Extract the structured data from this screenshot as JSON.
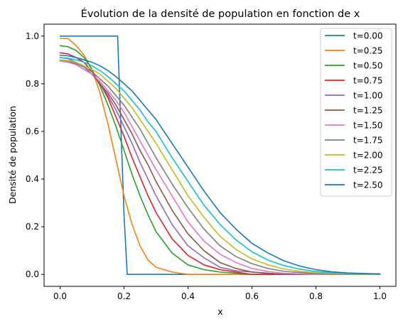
{
  "chart_data": {
    "type": "line",
    "title": "Évolution de la densité de population en fonction de x",
    "xlabel": "x",
    "ylabel": "Densité de population",
    "xlim": [
      -0.05,
      1.05
    ],
    "ylim": [
      -0.05,
      1.05
    ],
    "xticks": [
      0.0,
      0.2,
      0.4,
      0.6,
      0.8,
      1.0
    ],
    "xtick_labels": [
      "0.0",
      "0.2",
      "0.4",
      "0.6",
      "0.8",
      "1.0"
    ],
    "yticks": [
      0.0,
      0.2,
      0.4,
      0.6,
      0.8,
      1.0
    ],
    "ytick_labels": [
      "0.0",
      "0.2",
      "0.4",
      "0.6",
      "0.8",
      "1.0"
    ],
    "grid": false,
    "legend_position": "top-right",
    "series": [
      {
        "name": "t=0.00",
        "color": "#1f77b4",
        "x": [
          0,
          0.05,
          0.1,
          0.15,
          0.18,
          0.2,
          0.21,
          0.3,
          0.4,
          0.5,
          0.6,
          0.7,
          0.8,
          0.9,
          1.0
        ],
        "y": [
          1.0,
          1.0,
          1.0,
          1.0,
          1.0,
          0.25,
          0.0,
          0.0,
          0.0,
          0.0,
          0.0,
          0.0,
          0.0,
          0.0,
          0.0
        ]
      },
      {
        "name": "t=0.25",
        "color": "#ff7f0e",
        "x": [
          0,
          0.025,
          0.05,
          0.075,
          0.1,
          0.125,
          0.15,
          0.175,
          0.2,
          0.225,
          0.25,
          0.275,
          0.3,
          0.35,
          0.4,
          0.5,
          0.6,
          0.7,
          0.8,
          0.9,
          1.0
        ],
        "y": [
          0.99,
          0.99,
          0.96,
          0.92,
          0.86,
          0.76,
          0.63,
          0.48,
          0.33,
          0.21,
          0.12,
          0.06,
          0.03,
          0.01,
          0.0,
          0.0,
          0.0,
          0.0,
          0.0,
          0.0,
          0.0
        ]
      },
      {
        "name": "t=0.50",
        "color": "#2ca02c",
        "x": [
          0,
          0.025,
          0.05,
          0.075,
          0.1,
          0.125,
          0.15,
          0.175,
          0.2,
          0.225,
          0.25,
          0.275,
          0.3,
          0.35,
          0.4,
          0.45,
          0.5,
          0.6,
          0.7,
          0.8,
          0.9,
          1.0
        ],
        "y": [
          0.96,
          0.955,
          0.94,
          0.91,
          0.86,
          0.79,
          0.71,
          0.62,
          0.52,
          0.42,
          0.33,
          0.25,
          0.18,
          0.09,
          0.04,
          0.02,
          0.01,
          0.0,
          0.0,
          0.0,
          0.0,
          0.0
        ]
      },
      {
        "name": "t=0.75",
        "color": "#d62728",
        "x": [
          0,
          0.025,
          0.05,
          0.075,
          0.1,
          0.125,
          0.15,
          0.175,
          0.2,
          0.225,
          0.25,
          0.275,
          0.3,
          0.35,
          0.4,
          0.45,
          0.5,
          0.6,
          0.7,
          0.8,
          0.9,
          1.0
        ],
        "y": [
          0.93,
          0.925,
          0.91,
          0.89,
          0.85,
          0.8,
          0.74,
          0.66,
          0.58,
          0.49,
          0.41,
          0.33,
          0.26,
          0.15,
          0.08,
          0.04,
          0.02,
          0.0,
          0.0,
          0.0,
          0.0,
          0.0
        ]
      },
      {
        "name": "t=1.00",
        "color": "#9467bd",
        "x": [
          0,
          0.025,
          0.05,
          0.075,
          0.1,
          0.125,
          0.15,
          0.175,
          0.2,
          0.225,
          0.25,
          0.275,
          0.3,
          0.35,
          0.4,
          0.45,
          0.5,
          0.55,
          0.6,
          0.7,
          0.8,
          0.9,
          1.0
        ],
        "y": [
          0.91,
          0.905,
          0.89,
          0.87,
          0.84,
          0.8,
          0.75,
          0.69,
          0.62,
          0.55,
          0.47,
          0.4,
          0.33,
          0.21,
          0.12,
          0.07,
          0.03,
          0.015,
          0.01,
          0.0,
          0.0,
          0.0,
          0.0
        ]
      },
      {
        "name": "t=1.25",
        "color": "#8c564b",
        "x": [
          0,
          0.025,
          0.05,
          0.075,
          0.1,
          0.125,
          0.15,
          0.175,
          0.2,
          0.225,
          0.25,
          0.275,
          0.3,
          0.35,
          0.4,
          0.45,
          0.5,
          0.55,
          0.6,
          0.7,
          0.8,
          0.9,
          1.0
        ],
        "y": [
          0.9,
          0.895,
          0.88,
          0.86,
          0.84,
          0.8,
          0.76,
          0.71,
          0.65,
          0.59,
          0.52,
          0.46,
          0.39,
          0.27,
          0.17,
          0.1,
          0.05,
          0.025,
          0.01,
          0.0,
          0.0,
          0.0,
          0.0
        ]
      },
      {
        "name": "t=1.50",
        "color": "#e377c2",
        "x": [
          0,
          0.025,
          0.05,
          0.075,
          0.1,
          0.125,
          0.15,
          0.175,
          0.2,
          0.225,
          0.25,
          0.275,
          0.3,
          0.35,
          0.4,
          0.45,
          0.5,
          0.55,
          0.6,
          0.65,
          0.7,
          0.8,
          0.9,
          1.0
        ],
        "y": [
          0.895,
          0.89,
          0.88,
          0.86,
          0.84,
          0.81,
          0.77,
          0.73,
          0.68,
          0.62,
          0.56,
          0.5,
          0.44,
          0.33,
          0.22,
          0.14,
          0.085,
          0.05,
          0.025,
          0.012,
          0.005,
          0.0,
          0.0,
          0.0
        ]
      },
      {
        "name": "t=1.75",
        "color": "#7f7f7f",
        "x": [
          0,
          0.025,
          0.05,
          0.075,
          0.1,
          0.125,
          0.15,
          0.175,
          0.2,
          0.225,
          0.25,
          0.275,
          0.3,
          0.35,
          0.4,
          0.45,
          0.5,
          0.55,
          0.6,
          0.65,
          0.7,
          0.8,
          0.9,
          1.0
        ],
        "y": [
          0.9,
          0.895,
          0.885,
          0.87,
          0.85,
          0.82,
          0.79,
          0.75,
          0.71,
          0.66,
          0.61,
          0.55,
          0.49,
          0.38,
          0.28,
          0.19,
          0.12,
          0.075,
          0.045,
          0.025,
          0.013,
          0.003,
          0.0,
          0.0
        ]
      },
      {
        "name": "t=2.00",
        "color": "#bcbd22",
        "x": [
          0,
          0.025,
          0.05,
          0.075,
          0.1,
          0.125,
          0.15,
          0.175,
          0.2,
          0.225,
          0.25,
          0.275,
          0.3,
          0.35,
          0.4,
          0.45,
          0.5,
          0.55,
          0.6,
          0.65,
          0.7,
          0.75,
          0.8,
          0.9,
          1.0
        ],
        "y": [
          0.9,
          0.897,
          0.89,
          0.875,
          0.86,
          0.84,
          0.81,
          0.78,
          0.74,
          0.7,
          0.65,
          0.6,
          0.55,
          0.44,
          0.33,
          0.24,
          0.16,
          0.105,
          0.065,
          0.04,
          0.023,
          0.013,
          0.007,
          0.002,
          0.001
        ]
      },
      {
        "name": "t=2.25",
        "color": "#17becf",
        "x": [
          0,
          0.025,
          0.05,
          0.075,
          0.1,
          0.125,
          0.15,
          0.175,
          0.2,
          0.225,
          0.25,
          0.275,
          0.3,
          0.35,
          0.4,
          0.45,
          0.5,
          0.55,
          0.6,
          0.65,
          0.7,
          0.75,
          0.8,
          0.9,
          1.0
        ],
        "y": [
          0.91,
          0.907,
          0.9,
          0.89,
          0.875,
          0.855,
          0.83,
          0.8,
          0.77,
          0.73,
          0.69,
          0.64,
          0.6,
          0.49,
          0.39,
          0.29,
          0.21,
          0.145,
          0.095,
          0.06,
          0.037,
          0.022,
          0.012,
          0.004,
          0.002
        ]
      },
      {
        "name": "t=2.50",
        "color": "#1f77b4",
        "x": [
          0,
          0.025,
          0.05,
          0.075,
          0.1,
          0.125,
          0.15,
          0.175,
          0.2,
          0.225,
          0.25,
          0.275,
          0.3,
          0.35,
          0.4,
          0.45,
          0.5,
          0.55,
          0.6,
          0.65,
          0.7,
          0.75,
          0.8,
          0.85,
          0.9,
          1.0
        ],
        "y": [
          0.92,
          0.917,
          0.91,
          0.9,
          0.89,
          0.875,
          0.855,
          0.83,
          0.8,
          0.77,
          0.73,
          0.69,
          0.65,
          0.55,
          0.45,
          0.35,
          0.26,
          0.19,
          0.13,
          0.09,
          0.057,
          0.035,
          0.02,
          0.011,
          0.006,
          0.002
        ]
      }
    ]
  }
}
